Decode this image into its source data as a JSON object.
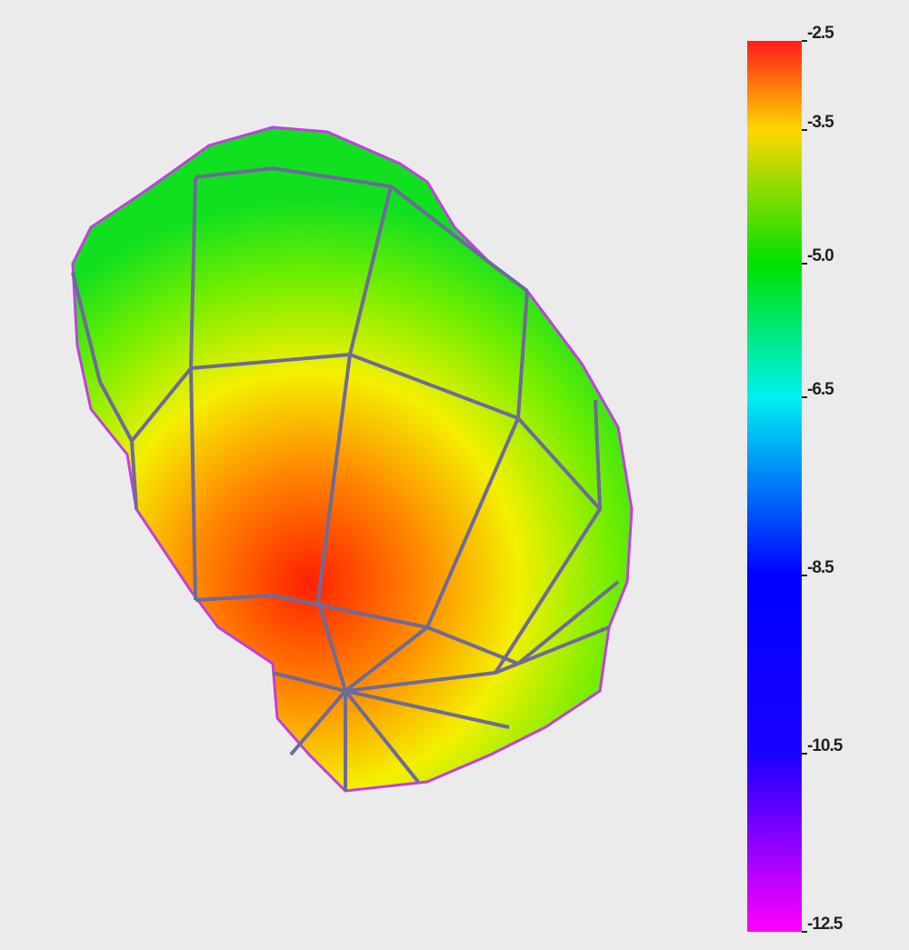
{
  "colorbar": {
    "range": [
      -12.5,
      -2.5
    ],
    "ticks": [
      -2.5,
      -3.5,
      {
        "value": -5,
        "label": "-5.0"
      },
      -6.5,
      -8.5,
      -10.5,
      -12.5
    ]
  }
}
